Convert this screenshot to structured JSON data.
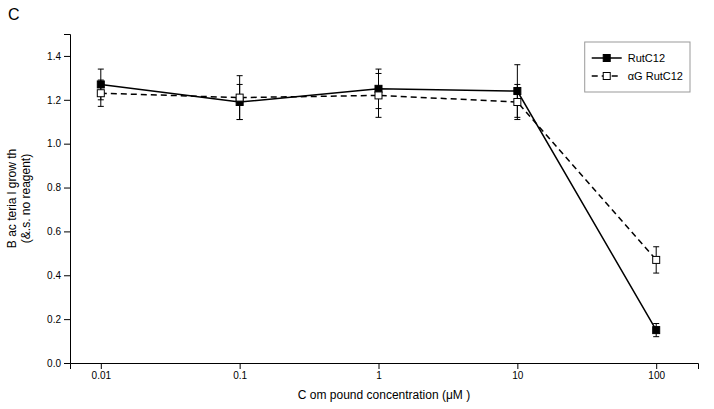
{
  "chart_data": {
    "type": "line",
    "title": "C",
    "xlabel": "C om pound concentration  (μM )",
    "ylabel": "B ac teria l grow  th\n(&.s. no reagent)",
    "x": [
      0.01,
      0.1,
      1,
      10,
      100
    ],
    "series": [
      {
        "name": "RutC12",
        "color": "black",
        "marker": "square",
        "line_style": "solid",
        "values": [
          1.27,
          1.19,
          1.25,
          1.24,
          0.15
        ],
        "errors": [
          0.07,
          0.08,
          0.09,
          0.12,
          0.03
        ]
      },
      {
        "name": "αG  RutC12",
        "color": "black",
        "marker": "open-square",
        "line_style": "dashed",
        "values": [
          1.23,
          1.21,
          1.22,
          1.19,
          0.47
        ],
        "errors": [
          0.06,
          0.1,
          0.1,
          0.08,
          0.06
        ]
      }
    ],
    "log": "x",
    "xlim": [
      0.006,
      200
    ],
    "xticks": [
      0.01,
      0.1,
      1,
      10,
      100
    ],
    "ylim": [
      0,
      1.5
    ],
    "yticks": [
      {
        "value": 0.0,
        "label": "0.0"
      },
      0.2,
      0.4,
      0.6,
      0.8,
      {
        "value": 1.0,
        "label": "1.0"
      },
      1.2,
      1.4
    ],
    "grid": false,
    "legend": "upper right"
  }
}
